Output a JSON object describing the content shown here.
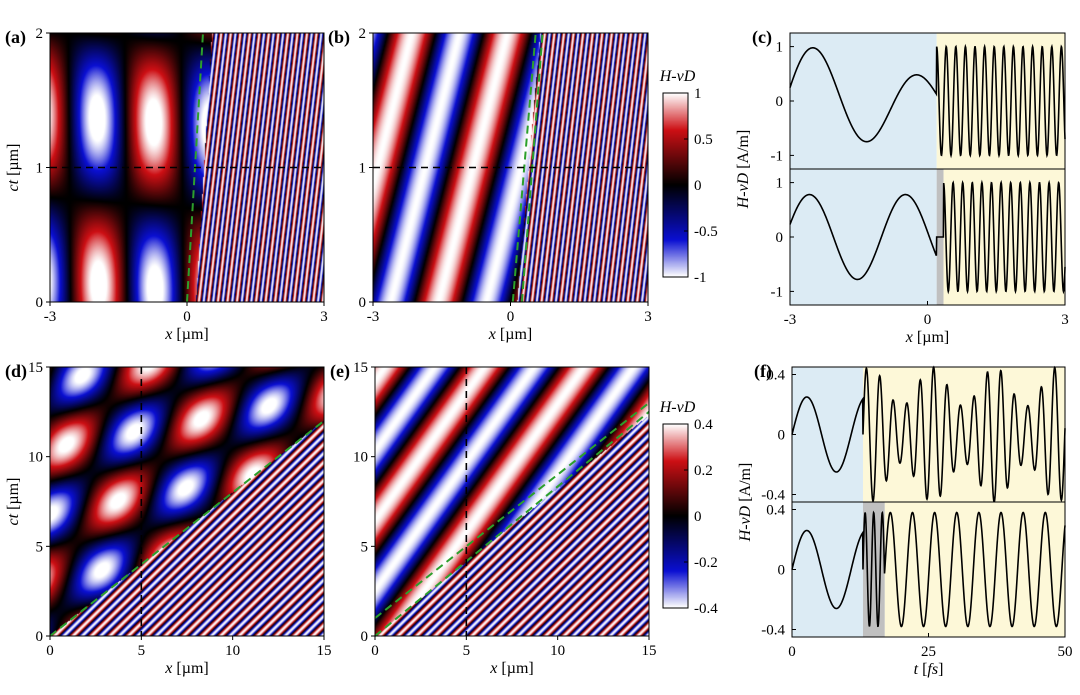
{
  "chart_data": [
    {
      "id": "a",
      "panel_label": "(a)",
      "type": "heatmap",
      "xlabel_italic": "x",
      "xlabel_unit": " [µm]",
      "ylabel_italic": "ct",
      "ylabel_unit": " [µm]",
      "xlim": [
        -3,
        3
      ],
      "ylim": [
        0,
        2
      ],
      "xticks": [
        "-3",
        "0",
        "3"
      ],
      "yticks": [
        "0",
        "1",
        "2"
      ],
      "colorbar_group": "top",
      "dashed_green_line": [
        [
          0.0,
          0.0
        ],
        [
          0.35,
          2.0
        ]
      ],
      "dashed_black_line": {
        "orientation": "horizontal",
        "value": 1
      }
    },
    {
      "id": "b",
      "panel_label": "(b)",
      "type": "heatmap",
      "xlabel_italic": "x",
      "xlabel_unit": " [µm]",
      "xlim": [
        -3,
        3
      ],
      "ylim": [
        0,
        2
      ],
      "xticks": [
        "-3",
        "0",
        "3"
      ],
      "yticks": [
        "0",
        "1",
        "2"
      ],
      "colorbar_group": "top",
      "dashed_green_lines": [
        [
          [
            0.05,
            0.0
          ],
          [
            0.55,
            2.0
          ]
        ],
        [
          [
            0.25,
            0.0
          ],
          [
            0.7,
            2.0
          ]
        ]
      ],
      "dashed_black_line": {
        "orientation": "horizontal",
        "value": 1
      }
    },
    {
      "id": "c",
      "panel_label": "(c)",
      "type": "line",
      "xlabel_italic": "x",
      "xlabel_unit": " [µm]",
      "ylabel_italic": "H-vD",
      "ylabel_unit": " [A/m]",
      "xlim": [
        -3,
        3
      ],
      "ylim": [
        -1.25,
        1.25
      ],
      "xticks": [
        "-3",
        "0",
        "3"
      ],
      "yticks": [
        "-1",
        "0",
        "1"
      ],
      "subplots": [
        "top",
        "bottom"
      ],
      "boundary_x": [
        0.2,
        0.35
      ]
    },
    {
      "id": "d",
      "panel_label": "(d)",
      "type": "heatmap",
      "xlabel_italic": "x",
      "xlabel_unit": " [µm]",
      "ylabel_italic": "ct",
      "ylabel_unit": " [µm]",
      "xlim": [
        0,
        15
      ],
      "ylim": [
        0,
        15
      ],
      "xticks": [
        "0",
        "5",
        "10",
        "15"
      ],
      "yticks": [
        "0",
        "5",
        "10",
        "15"
      ],
      "colorbar_group": "bottom",
      "dashed_green_line": [
        [
          0.0,
          0.0
        ],
        [
          15.0,
          12.0
        ]
      ],
      "dashed_black_line": {
        "orientation": "vertical",
        "value": 5
      }
    },
    {
      "id": "e",
      "panel_label": "(e)",
      "type": "heatmap",
      "xlabel_italic": "x",
      "xlabel_unit": " [µm]",
      "xlim": [
        0,
        15
      ],
      "ylim": [
        0,
        15
      ],
      "xticks": [
        "0",
        "5",
        "10",
        "15"
      ],
      "yticks": [
        "0",
        "5",
        "10",
        "15"
      ],
      "colorbar_group": "bottom",
      "dashed_green_lines": [
        [
          [
            0.0,
            1.0
          ],
          [
            15.0,
            13.0
          ]
        ],
        [
          [
            0.0,
            0.0
          ],
          [
            15.0,
            12.5
          ]
        ]
      ],
      "dashed_black_line": {
        "orientation": "vertical",
        "value": 5
      }
    },
    {
      "id": "f",
      "panel_label": "(f)",
      "type": "line",
      "xlabel_italic": "t",
      "xlabel_unit_pre": " [",
      "xlabel_unit_italic": "fs",
      "xlabel_unit_post": "]",
      "ylabel_italic": "H-vD",
      "ylabel_unit": " [A/m]",
      "xlim": [
        0,
        50
      ],
      "ylim": [
        -0.45,
        0.45
      ],
      "xticks": [
        "0",
        "25",
        "50"
      ],
      "yticks": [
        "-0.4",
        "0",
        "0.4"
      ],
      "subplots": [
        "top",
        "bottom"
      ],
      "boundary_t": [
        13,
        17
      ]
    }
  ],
  "colorbars": [
    {
      "group": "top",
      "title": "H-vD",
      "range": [
        -1,
        1
      ],
      "ticks": [
        "1",
        "0.5",
        "0",
        "-0.5",
        "-1"
      ]
    },
    {
      "group": "bottom",
      "title": "H-vD",
      "range": [
        -0.4,
        0.4
      ],
      "ticks": [
        "0.4",
        "0.2",
        "0",
        "-0.2",
        "-0.4"
      ]
    }
  ],
  "colors": {
    "region_left": "#dcebf4",
    "region_right": "#fdf8d8",
    "transition": "#c0c0c0",
    "dashed_green": "#2ca02c",
    "dashed_black": "#000000"
  }
}
